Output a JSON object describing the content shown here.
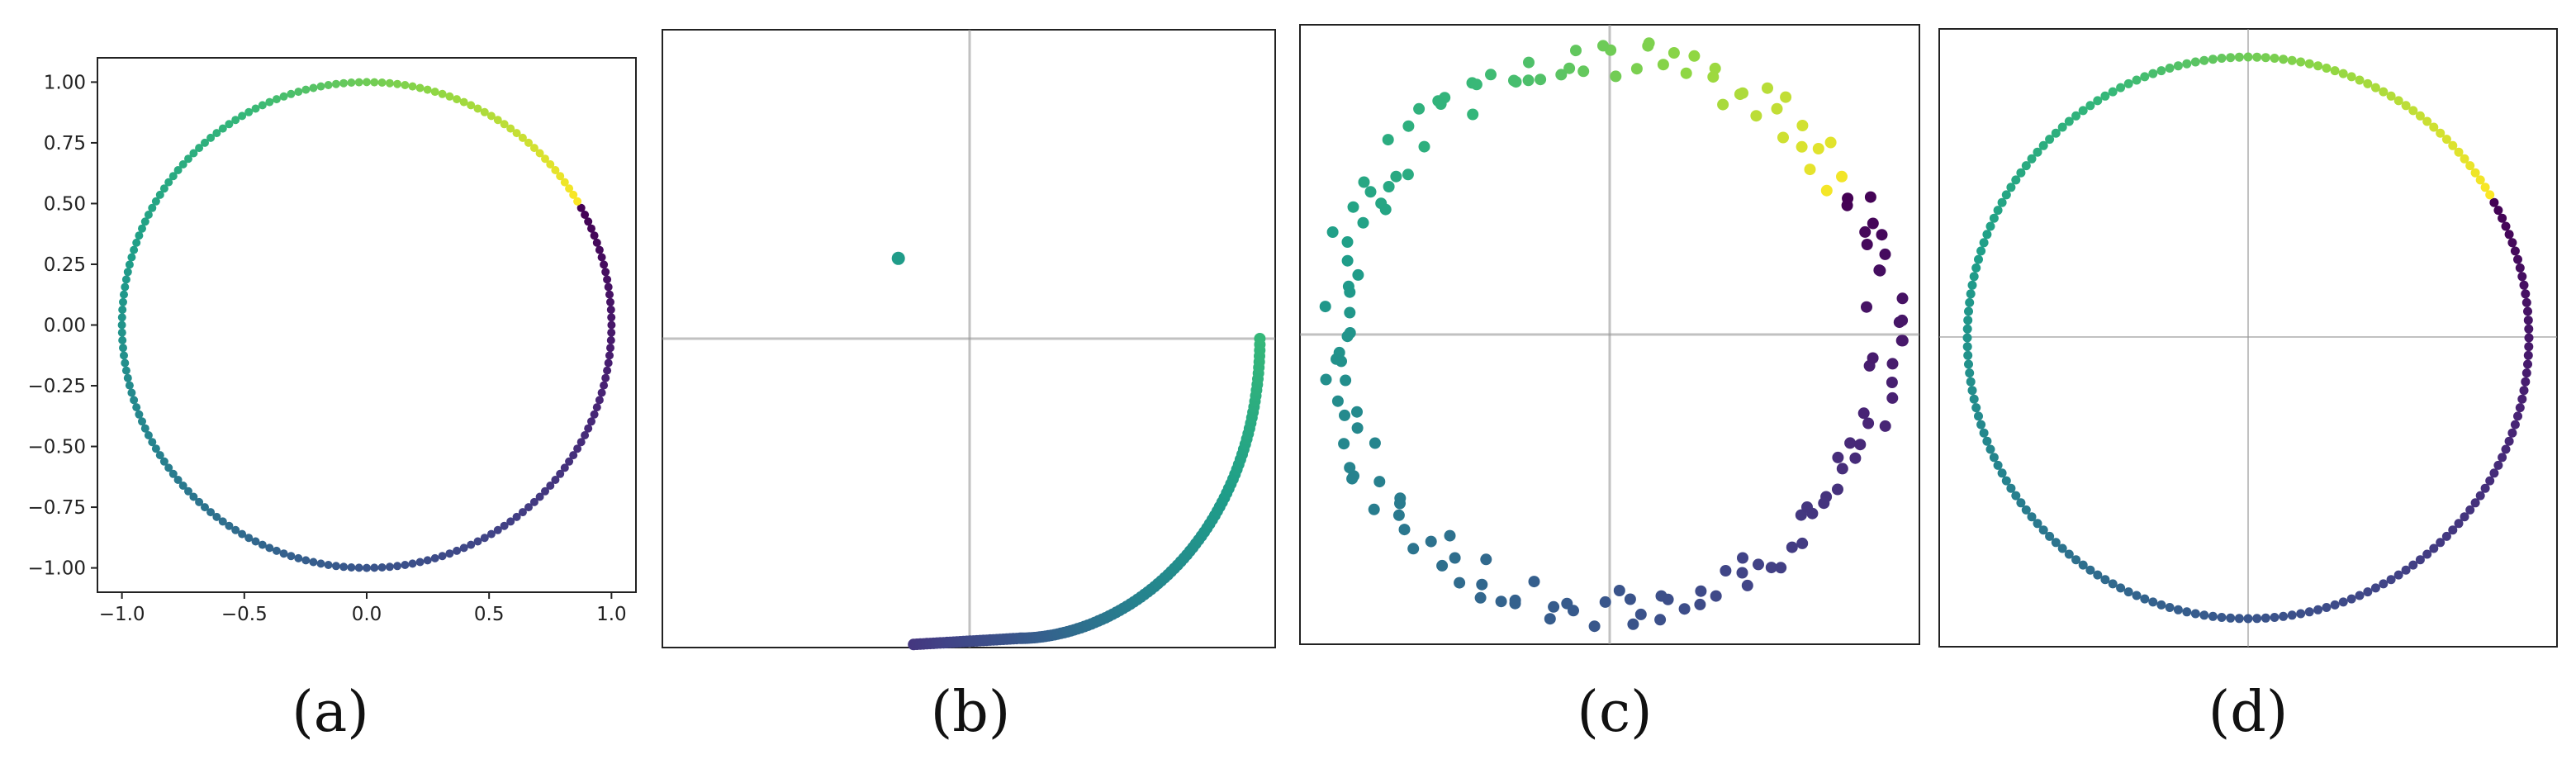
{
  "chart_data": [
    {
      "panel": "a",
      "caption": "(a)",
      "type": "scatter",
      "title": "",
      "xlabel": "",
      "ylabel": "",
      "xlim": [
        -1.1,
        1.1
      ],
      "ylim": [
        -1.1,
        1.1
      ],
      "grid": false,
      "xticks": [
        "−1.0",
        "−0.5",
        "0.0",
        "0.5",
        "1.0"
      ],
      "xtick_values": [
        -1.0,
        -0.5,
        0.0,
        0.5,
        1.0
      ],
      "yticks": [
        "1.00",
        "0.75",
        "0.50",
        "0.25",
        "0.00",
        "−0.25",
        "−0.50",
        "−0.75",
        "−1.00"
      ],
      "ytick_values": [
        1.0,
        0.75,
        0.5,
        0.25,
        0.0,
        -0.25,
        -0.5,
        -0.75,
        -1.0
      ],
      "colormap": "viridis",
      "description_of_points": "unit circle, ~200 points colored by angle",
      "points": {
        "shape": "circle",
        "count": 200,
        "radius": 1.0,
        "noise": 0
      }
    },
    {
      "panel": "b",
      "caption": "(b)",
      "type": "scatter",
      "xlim": [
        -1.1,
        1.1
      ],
      "ylim": [
        -1.1,
        1.1
      ],
      "axes_crosshair": true,
      "colormap": "viridis",
      "outlier": {
        "x": -0.23,
        "y": 0.26,
        "color_t": 0.62
      },
      "points": {
        "shape": "arc",
        "count": 130,
        "t_start": 0.12,
        "t_end": 0.78
      }
    },
    {
      "panel": "c",
      "caption": "(c)",
      "type": "scatter",
      "xlim": [
        -1.1,
        1.1
      ],
      "ylim": [
        -1.1,
        1.1
      ],
      "axes_crosshair": true,
      "colormap": "viridis",
      "points": {
        "shape": "noisy_circle",
        "count": 160,
        "radius": 0.98,
        "noise": 0.07
      }
    },
    {
      "panel": "d",
      "caption": "(d)",
      "type": "scatter",
      "xlim": [
        -1.1,
        1.1
      ],
      "ylim": [
        -1.1,
        1.1
      ],
      "axes_crosshair": true,
      "colormap": "viridis",
      "points": {
        "shape": "circle",
        "count": 200,
        "radius": 1.0,
        "noise": 0
      }
    }
  ]
}
